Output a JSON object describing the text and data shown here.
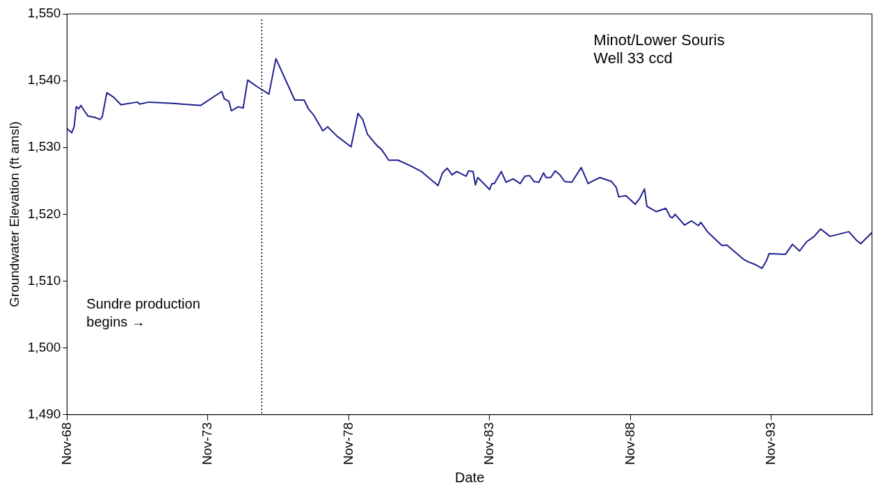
{
  "chart_data": {
    "type": "line",
    "xlabel": "Date",
    "ylabel": "Groundwater Elevation (ft amsl)",
    "annotations": [
      "Minot/Lower Souris\nWell 33 ccd"
    ],
    "ref_lines": [
      {
        "axis": "x",
        "value": "1975-10",
        "label": "Sundre production\nbegins →",
        "color": "#000000",
        "line_style": "dotted"
      }
    ],
    "xlim": [
      "1968-11",
      "1997-06"
    ],
    "xticks": [
      {
        "value": "1968-11",
        "label": "Nov-68"
      },
      {
        "value": "1973-11",
        "label": "Nov-73"
      },
      {
        "value": "1978-11",
        "label": "Nov-78"
      },
      {
        "value": "1983-11",
        "label": "Nov-83"
      },
      {
        "value": "1988-11",
        "label": "Nov-88"
      },
      {
        "value": "1993-11",
        "label": "Nov-93"
      }
    ],
    "ylim": [
      1490,
      1550
    ],
    "yticks": [
      {
        "value": 1490,
        "label": "1,490"
      },
      {
        "value": 1500,
        "label": "1,500"
      },
      {
        "value": 1510,
        "label": "1,510"
      },
      {
        "value": 1520,
        "label": "1,520"
      },
      {
        "value": 1530,
        "label": "1,530"
      },
      {
        "value": 1540,
        "label": "1,540"
      },
      {
        "value": 1550,
        "label": "1,550"
      }
    ],
    "grid": false,
    "legend": false,
    "marker": "none",
    "line_style": "solid",
    "x": [
      "1968-11",
      "1969-01",
      "1969-02",
      "1969-03",
      "1969-04",
      "1969-05",
      "1969-06",
      "1969-08",
      "1969-11",
      "1970-01",
      "1970-02",
      "1970-04",
      "1970-07",
      "1970-10",
      "1971-05",
      "1971-06",
      "1971-10",
      "1972-08",
      "1973-08",
      "1974-05",
      "1974-06",
      "1974-08",
      "1974-09",
      "1974-12",
      "1975-02",
      "1975-04",
      "1975-08",
      "1976-01",
      "1976-04",
      "1976-12",
      "1977-04",
      "1977-06",
      "1977-08",
      "1977-12",
      "1978-02",
      "1978-06",
      "1978-12",
      "1979-03",
      "1979-05",
      "1979-07",
      "1979-11",
      "1980-01",
      "1980-04",
      "1980-08",
      "1981-01",
      "1981-06",
      "1982-01",
      "1982-03",
      "1982-05",
      "1982-07",
      "1982-09",
      "1983-01",
      "1983-02",
      "1983-04",
      "1983-05",
      "1983-06",
      "1983-11",
      "1983-12",
      "1984-01",
      "1984-04",
      "1984-06",
      "1984-09",
      "1984-12",
      "1985-02",
      "1985-04",
      "1985-06",
      "1985-08",
      "1985-10",
      "1985-11",
      "1986-01",
      "1986-03",
      "1986-05",
      "1986-07",
      "1986-10",
      "1987-02",
      "1987-05",
      "1987-07",
      "1987-10",
      "1988-03",
      "1988-05",
      "1988-06",
      "1988-09",
      "1989-01",
      "1989-03",
      "1989-05",
      "1989-06",
      "1989-10",
      "1990-02",
      "1990-04",
      "1990-05",
      "1990-06",
      "1990-10",
      "1991-01",
      "1991-04",
      "1991-05",
      "1991-08",
      "1992-02",
      "1992-04",
      "1992-11",
      "1993-01",
      "1993-04",
      "1993-07",
      "1993-09",
      "1993-10",
      "1994-05",
      "1994-08",
      "1994-11",
      "1995-02",
      "1995-05",
      "1995-08",
      "1995-12",
      "1996-08",
      "1996-11",
      "1997-01",
      "1997-06"
    ],
    "series": [
      {
        "color": "#1f1f8f",
        "values": [
          1532.8,
          1532.2,
          1533.1,
          1536.1,
          1535.8,
          1536.3,
          1535.7,
          1534.7,
          1534.5,
          1534.2,
          1534.6,
          1538.2,
          1537.5,
          1536.4,
          1536.8,
          1536.5,
          1536.8,
          1536.6,
          1536.3,
          1538.4,
          1537.3,
          1536.9,
          1535.5,
          1536.1,
          1535.9,
          1540.1,
          1539.1,
          1538.0,
          1543.3,
          1537.1,
          1537.1,
          1535.7,
          1534.9,
          1532.5,
          1533.1,
          1531.7,
          1530.1,
          1535.1,
          1534.2,
          1532.0,
          1530.3,
          1529.7,
          1528.1,
          1528.1,
          1527.3,
          1526.4,
          1524.3,
          1526.2,
          1526.9,
          1525.9,
          1526.4,
          1525.7,
          1526.5,
          1526.4,
          1524.4,
          1525.5,
          1523.7,
          1524.6,
          1524.6,
          1526.4,
          1524.8,
          1525.3,
          1524.6,
          1525.7,
          1525.8,
          1524.9,
          1524.8,
          1526.2,
          1525.5,
          1525.5,
          1526.5,
          1525.9,
          1524.9,
          1524.8,
          1527.0,
          1524.6,
          1525.0,
          1525.5,
          1524.9,
          1524.0,
          1522.6,
          1522.8,
          1521.5,
          1522.4,
          1523.8,
          1521.2,
          1520.4,
          1520.9,
          1519.6,
          1519.5,
          1520.0,
          1518.4,
          1519.0,
          1518.3,
          1518.8,
          1517.3,
          1515.3,
          1515.4,
          1513.3,
          1512.9,
          1512.5,
          1511.9,
          1513.1,
          1514.1,
          1514.0,
          1515.5,
          1514.5,
          1515.9,
          1516.6,
          1517.8,
          1516.7,
          1517.4,
          1516.2,
          1515.6,
          1517.3
        ]
      }
    ]
  }
}
